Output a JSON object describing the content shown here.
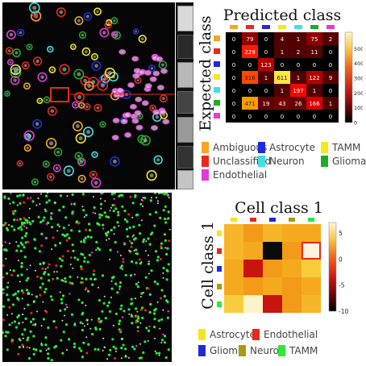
{
  "top_panel": {
    "title": "Predicted class",
    "ylabel": "Expected class",
    "matrix": [
      [
        "0",
        "79",
        "0",
        "4",
        "1",
        "75",
        "2"
      ],
      [
        "0",
        "229",
        "0",
        "1",
        "2",
        "11",
        "0"
      ],
      [
        "0",
        "0",
        "123",
        "0",
        "0",
        "0",
        "0"
      ],
      [
        "0",
        "316",
        "1",
        "611",
        "1",
        "122",
        "9"
      ],
      [
        "0",
        "0",
        "0",
        "1",
        "197",
        "1",
        "0"
      ],
      [
        "0",
        "471",
        "19",
        "43",
        "26",
        "166",
        "1"
      ],
      [
        "0",
        "0",
        "0",
        "0",
        "0",
        "0",
        "0"
      ]
    ],
    "colorbar_ticks": [
      "500",
      "400",
      "300",
      "200",
      "100",
      "0"
    ],
    "legend": [
      {
        "label": "Ambiguous",
        "color": "#f5a623"
      },
      {
        "label": "Astrocyte",
        "color": "#1f2bd9"
      },
      {
        "label": "TAMM",
        "color": "#f2ea1c"
      },
      {
        "label": "Unclassified",
        "color": "#e8281a"
      },
      {
        "label": "Neuron",
        "color": "#3fe0e8"
      },
      {
        "label": "Glioma",
        "color": "#1faa2a"
      },
      {
        "label": "Endothelial",
        "color": "#e43ad8"
      }
    ]
  },
  "bottom_panel": {
    "title": "Cell class 1",
    "ylabel": "Cell class 1",
    "colorbar_ticks": [
      "5",
      "0",
      "-5",
      "-10"
    ],
    "legend": [
      {
        "label": "Astrocyte",
        "color": "#f5e51c"
      },
      {
        "label": "Endothelial",
        "color": "#e8281a"
      },
      {
        "label": "Glioma",
        "color": "#1f2bd9"
      },
      {
        "label": "Neuron",
        "color": "#a89a14"
      },
      {
        "label": "TAMM",
        "color": "#2ee83a"
      }
    ]
  },
  "chart_data": [
    {
      "type": "heatmap",
      "title": "Predicted class",
      "ylabel": "Expected class",
      "values": [
        [
          0,
          79,
          0,
          4,
          1,
          75,
          2
        ],
        [
          0,
          229,
          0,
          1,
          2,
          11,
          0
        ],
        [
          0,
          0,
          123,
          0,
          0,
          0,
          0
        ],
        [
          0,
          316,
          1,
          611,
          1,
          122,
          9
        ],
        [
          0,
          0,
          0,
          1,
          197,
          1,
          0
        ],
        [
          0,
          471,
          19,
          43,
          26,
          166,
          1
        ],
        [
          0,
          0,
          0,
          0,
          0,
          0,
          0
        ]
      ],
      "colorbar_range": [
        0,
        500
      ]
    },
    {
      "type": "heatmap",
      "title": "Cell class 1",
      "ylabel": "Cell class 1",
      "values": [
        [
          3,
          1,
          3,
          2,
          2
        ],
        [
          3,
          2,
          -10,
          1,
          3
        ],
        [
          2,
          -4,
          1,
          2,
          4
        ],
        [
          2,
          1,
          2,
          1,
          2
        ],
        [
          4,
          6,
          -4,
          1,
          3
        ]
      ],
      "colorbar_range": [
        -10,
        7
      ]
    }
  ]
}
